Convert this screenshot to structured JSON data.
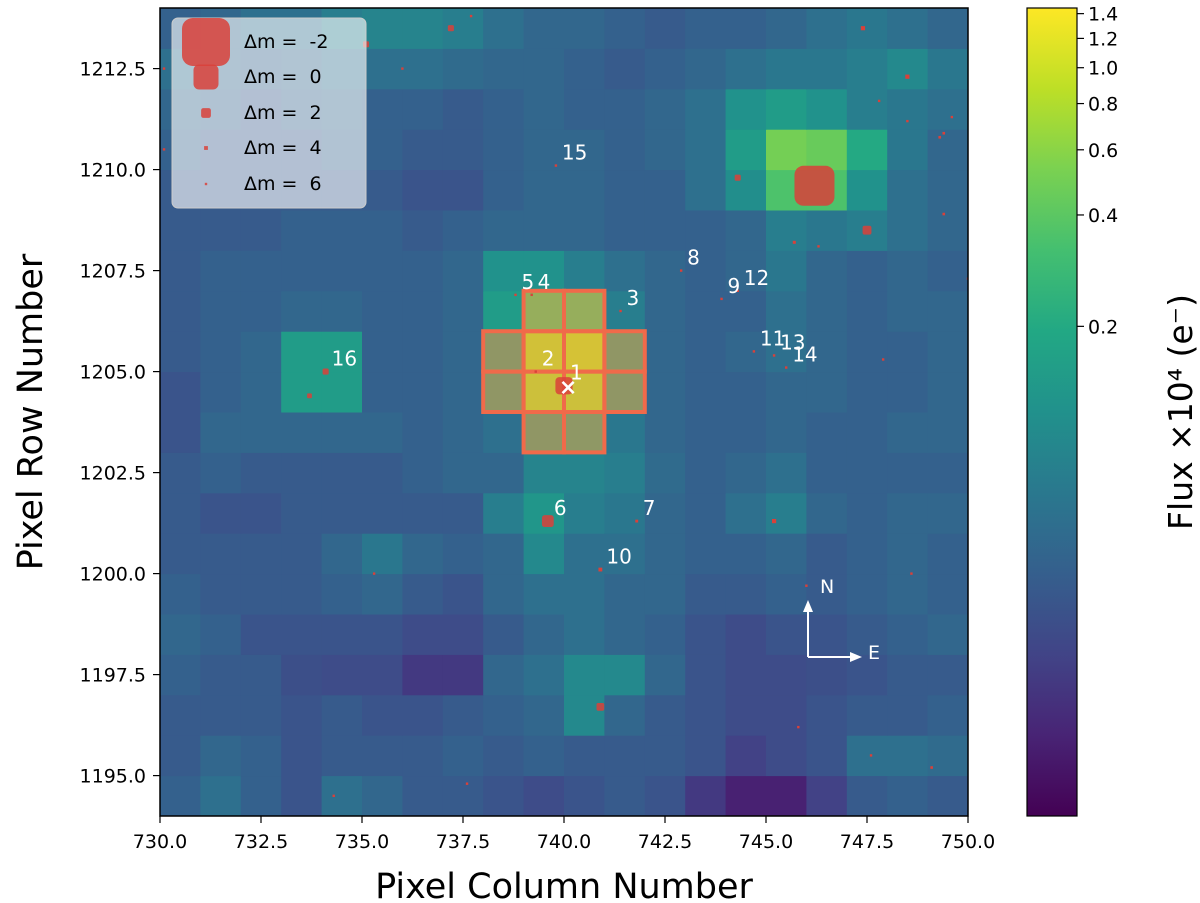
{
  "chart_data": {
    "type": "heatmap",
    "title": "",
    "xlabel": "Pixel Column Number",
    "ylabel": "Pixel Row Number",
    "xlim": [
      730,
      750
    ],
    "ylim": [
      1194,
      1214
    ],
    "x_ticks": [
      730,
      732.5,
      735,
      737.5,
      740,
      742.5,
      745,
      747.5,
      750
    ],
    "x_tick_labels": [
      "730.0",
      "732.5",
      "735.0",
      "737.5",
      "740.0",
      "742.5",
      "745.0",
      "747.5",
      "750.0"
    ],
    "y_ticks": [
      1195,
      1197.5,
      1200,
      1202.5,
      1205,
      1207.5,
      1210,
      1212.5
    ],
    "y_tick_labels": [
      "1195.0",
      "1197.5",
      "1200.0",
      "1202.5",
      "1205.0",
      "1207.5",
      "1210.0",
      "1212.5"
    ],
    "pixel_grid": {
      "col_start": 730,
      "row_start": 1194,
      "rows_bottom_to_top": [
        [
          0.045,
          0.06,
          0.045,
          0.035,
          0.06,
          0.05,
          0.04,
          0.04,
          0.035,
          0.03,
          0.035,
          0.04,
          0.035,
          0.022,
          0.015,
          0.015,
          0.025,
          0.04,
          0.045,
          0.04
        ],
        [
          0.04,
          0.05,
          0.045,
          0.035,
          0.04,
          0.04,
          0.04,
          0.045,
          0.04,
          0.045,
          0.04,
          0.04,
          0.04,
          0.035,
          0.025,
          0.03,
          0.035,
          0.06,
          0.06,
          0.055
        ],
        [
          0.04,
          0.04,
          0.04,
          0.035,
          0.04,
          0.035,
          0.035,
          0.04,
          0.045,
          0.05,
          0.1,
          0.05,
          0.04,
          0.035,
          0.03,
          0.03,
          0.035,
          0.04,
          0.04,
          0.045
        ],
        [
          0.045,
          0.04,
          0.04,
          0.032,
          0.03,
          0.03,
          0.022,
          0.022,
          0.05,
          0.06,
          0.1,
          0.1,
          0.05,
          0.035,
          0.03,
          0.03,
          0.032,
          0.035,
          0.04,
          0.04
        ],
        [
          0.05,
          0.045,
          0.035,
          0.035,
          0.035,
          0.035,
          0.03,
          0.03,
          0.04,
          0.05,
          0.06,
          0.05,
          0.045,
          0.035,
          0.03,
          0.035,
          0.035,
          0.04,
          0.045,
          0.05
        ],
        [
          0.045,
          0.04,
          0.04,
          0.04,
          0.045,
          0.05,
          0.04,
          0.035,
          0.05,
          0.06,
          0.06,
          0.05,
          0.05,
          0.04,
          0.04,
          0.045,
          0.04,
          0.045,
          0.05,
          0.045
        ],
        [
          0.04,
          0.04,
          0.04,
          0.04,
          0.05,
          0.07,
          0.05,
          0.045,
          0.05,
          0.1,
          0.06,
          0.06,
          0.05,
          0.045,
          0.045,
          0.05,
          0.04,
          0.045,
          0.05,
          0.045
        ],
        [
          0.04,
          0.035,
          0.035,
          0.04,
          0.04,
          0.04,
          0.04,
          0.04,
          0.08,
          0.13,
          0.08,
          0.07,
          0.05,
          0.045,
          0.06,
          0.08,
          0.05,
          0.045,
          0.05,
          0.05
        ],
        [
          0.04,
          0.045,
          0.04,
          0.04,
          0.04,
          0.04,
          0.045,
          0.05,
          0.05,
          0.09,
          0.09,
          0.08,
          0.055,
          0.045,
          0.05,
          0.06,
          0.045,
          0.045,
          0.045,
          0.045
        ],
        [
          0.035,
          0.05,
          0.05,
          0.05,
          0.05,
          0.05,
          0.045,
          0.05,
          0.06,
          0.09,
          0.1,
          0.07,
          0.05,
          0.045,
          0.045,
          0.05,
          0.045,
          0.045,
          0.05,
          0.05
        ],
        [
          0.035,
          0.045,
          0.05,
          0.15,
          0.15,
          0.045,
          0.045,
          0.05,
          0.09,
          0.7,
          0.7,
          0.09,
          0.05,
          0.045,
          0.045,
          0.05,
          0.05,
          0.045,
          0.045,
          0.05
        ],
        [
          0.04,
          0.045,
          0.05,
          0.15,
          0.15,
          0.045,
          0.045,
          0.05,
          0.09,
          0.75,
          0.8,
          0.09,
          0.05,
          0.045,
          0.05,
          0.06,
          0.05,
          0.045,
          0.045,
          0.05
        ],
        [
          0.04,
          0.045,
          0.045,
          0.05,
          0.05,
          0.045,
          0.045,
          0.05,
          0.15,
          0.25,
          0.25,
          0.08,
          0.05,
          0.045,
          0.045,
          0.06,
          0.05,
          0.045,
          0.05,
          0.05
        ],
        [
          0.04,
          0.045,
          0.045,
          0.045,
          0.045,
          0.045,
          0.045,
          0.05,
          0.12,
          0.12,
          0.08,
          0.06,
          0.05,
          0.045,
          0.05,
          0.07,
          0.05,
          0.045,
          0.05,
          0.045
        ],
        [
          0.04,
          0.04,
          0.04,
          0.045,
          0.045,
          0.045,
          0.04,
          0.045,
          0.05,
          0.05,
          0.05,
          0.045,
          0.045,
          0.045,
          0.05,
          0.08,
          0.07,
          0.08,
          0.06,
          0.05
        ],
        [
          0.04,
          0.04,
          0.04,
          0.04,
          0.04,
          0.04,
          0.035,
          0.035,
          0.045,
          0.05,
          0.05,
          0.045,
          0.045,
          0.06,
          0.11,
          0.35,
          0.35,
          0.12,
          0.06,
          0.05
        ],
        [
          0.045,
          0.04,
          0.04,
          0.04,
          0.045,
          0.045,
          0.04,
          0.04,
          0.045,
          0.05,
          0.05,
          0.045,
          0.05,
          0.06,
          0.15,
          0.5,
          0.45,
          0.2,
          0.07,
          0.05
        ],
        [
          0.05,
          0.045,
          0.04,
          0.045,
          0.05,
          0.045,
          0.045,
          0.04,
          0.045,
          0.05,
          0.045,
          0.045,
          0.05,
          0.06,
          0.12,
          0.15,
          0.12,
          0.08,
          0.07,
          0.06
        ],
        [
          0.06,
          0.05,
          0.045,
          0.05,
          0.06,
          0.06,
          0.06,
          0.055,
          0.05,
          0.05,
          0.045,
          0.04,
          0.045,
          0.05,
          0.06,
          0.07,
          0.07,
          0.08,
          0.1,
          0.07
        ],
        [
          0.045,
          0.05,
          0.06,
          0.06,
          0.08,
          0.09,
          0.09,
          0.08,
          0.06,
          0.05,
          0.05,
          0.045,
          0.04,
          0.045,
          0.045,
          0.05,
          0.06,
          0.07,
          0.06,
          0.05
        ]
      ]
    },
    "aperture_pixels": [
      [
        739,
        1203
      ],
      [
        740,
        1203
      ],
      [
        738,
        1204
      ],
      [
        739,
        1204
      ],
      [
        740,
        1204
      ],
      [
        741,
        1204
      ],
      [
        738,
        1205
      ],
      [
        739,
        1205
      ],
      [
        740,
        1205
      ],
      [
        741,
        1205
      ],
      [
        739,
        1206
      ],
      [
        740,
        1206
      ]
    ],
    "target_marker": {
      "x": 740.1,
      "y": 1204.6,
      "symbol": "×"
    },
    "stars": [
      {
        "label": "1",
        "x": 740.0,
        "y": 1204.65,
        "dm": 0.8
      },
      {
        "label": "2",
        "x": 739.3,
        "y": 1205.0,
        "dm": 6.5
      },
      {
        "label": "3",
        "x": 741.4,
        "y": 1206.5,
        "dm": 6.5
      },
      {
        "label": "4",
        "x": 739.2,
        "y": 1206.9,
        "dm": 6.8
      },
      {
        "label": "5",
        "x": 738.8,
        "y": 1206.9,
        "dm": 5.0
      },
      {
        "label": "6",
        "x": 739.6,
        "y": 1201.3,
        "dm": 1.6
      },
      {
        "label": "7",
        "x": 741.8,
        "y": 1201.3,
        "dm": 4.6
      },
      {
        "label": "8",
        "x": 742.9,
        "y": 1207.5,
        "dm": 5.0
      },
      {
        "label": "9",
        "x": 743.9,
        "y": 1206.8,
        "dm": 5.5
      },
      {
        "label": "10",
        "x": 740.9,
        "y": 1200.1,
        "dm": 4.0
      },
      {
        "label": "11",
        "x": 744.7,
        "y": 1205.5,
        "dm": 5.0
      },
      {
        "label": "12",
        "x": 744.3,
        "y": 1207.0,
        "dm": 5.8
      },
      {
        "label": "13",
        "x": 745.2,
        "y": 1205.4,
        "dm": 6.0
      },
      {
        "label": "14",
        "x": 745.5,
        "y": 1205.1,
        "dm": 5.8
      },
      {
        "label": "15",
        "x": 739.8,
        "y": 1210.1,
        "dm": 5.0
      },
      {
        "label": "16",
        "x": 734.1,
        "y": 1205.0,
        "dm": 3.0
      },
      {
        "label": "",
        "x": 746.2,
        "y": 1209.6,
        "dm": -1.0
      },
      {
        "label": "",
        "x": 747.5,
        "y": 1208.5,
        "dm": 2.2
      },
      {
        "label": "",
        "x": 744.3,
        "y": 1209.8,
        "dm": 3.0
      },
      {
        "label": "",
        "x": 745.7,
        "y": 1208.2,
        "dm": 4.5
      },
      {
        "label": "",
        "x": 746.3,
        "y": 1208.1,
        "dm": 6.0
      },
      {
        "label": "",
        "x": 733.7,
        "y": 1204.4,
        "dm": 3.5
      },
      {
        "label": "",
        "x": 740.9,
        "y": 1196.7,
        "dm": 2.5
      },
      {
        "label": "",
        "x": 745.2,
        "y": 1201.3,
        "dm": 3.8
      },
      {
        "label": "",
        "x": 747.4,
        "y": 1213.5,
        "dm": 3.8
      },
      {
        "label": "",
        "x": 748.5,
        "y": 1212.3,
        "dm": 3.8
      },
      {
        "label": "",
        "x": 749.4,
        "y": 1210.9,
        "dm": 4.8
      },
      {
        "label": "",
        "x": 749.3,
        "y": 1210.8,
        "dm": 4.8
      },
      {
        "label": "",
        "x": 749.4,
        "y": 1208.9,
        "dm": 4.8
      },
      {
        "label": "",
        "x": 737.2,
        "y": 1213.5,
        "dm": 3.0
      },
      {
        "label": "",
        "x": 735.1,
        "y": 1213.1,
        "dm": 3.0
      },
      {
        "label": "",
        "x": 734.3,
        "y": 1194.5,
        "dm": 5.0
      },
      {
        "label": "",
        "x": 737.6,
        "y": 1194.8,
        "dm": 5.0
      },
      {
        "label": "",
        "x": 747.6,
        "y": 1195.5,
        "dm": 5.0
      },
      {
        "label": "",
        "x": 749.1,
        "y": 1195.2,
        "dm": 4.8
      },
      {
        "label": "",
        "x": 746.0,
        "y": 1199.7,
        "dm": 5.2
      },
      {
        "label": "",
        "x": 748.5,
        "y": 1211.2,
        "dm": 5.5
      },
      {
        "label": "",
        "x": 747.8,
        "y": 1211.7,
        "dm": 6.0
      },
      {
        "label": "",
        "x": 749.6,
        "y": 1211.3,
        "dm": 5.5
      },
      {
        "label": "",
        "x": 747.9,
        "y": 1205.3,
        "dm": 6.0
      },
      {
        "label": "",
        "x": 748.6,
        "y": 1200.0,
        "dm": 6.0
      },
      {
        "label": "",
        "x": 735.3,
        "y": 1200.0,
        "dm": 6.0
      },
      {
        "label": "",
        "x": 745.8,
        "y": 1196.2,
        "dm": 6.2
      },
      {
        "label": "",
        "x": 736.0,
        "y": 1212.5,
        "dm": 6.2
      },
      {
        "label": "",
        "x": 737.7,
        "y": 1213.8,
        "dm": 6.2
      },
      {
        "label": "",
        "x": 730.1,
        "y": 1212.5,
        "dm": 6.2
      },
      {
        "label": "",
        "x": 730.1,
        "y": 1210.5,
        "dm": 6.3
      },
      {
        "label": "",
        "x": 750.0,
        "y": 1207.3,
        "dm": 6.3
      }
    ],
    "legend": {
      "position": "top-left",
      "entries": [
        {
          "label": "Δm =  -2",
          "dm": -2
        },
        {
          "label": "Δm =  0",
          "dm": 0
        },
        {
          "label": "Δm =  2",
          "dm": 2
        },
        {
          "label": "Δm =  4",
          "dm": 4
        },
        {
          "label": "Δm =  6",
          "dm": 6
        }
      ]
    },
    "compass": {
      "north": "N",
      "east": "E"
    },
    "colorbar": {
      "label": "Flux ×10⁴ (e⁻)",
      "scale": "log",
      "vmin": 0.0095,
      "vmax": 1.45,
      "ticks": [
        0.2,
        0.4,
        0.6,
        0.8,
        1.0,
        1.2,
        1.4
      ],
      "tick_labels": [
        "0.2",
        "0.4",
        "0.6",
        "0.8",
        "1.0",
        "1.2",
        "1.4"
      ]
    },
    "colors": {
      "star_marker": "#d9413a",
      "aperture": "#f06a4a",
      "target_fill": "#f9a73e",
      "annotation": "#ffffff"
    }
  }
}
